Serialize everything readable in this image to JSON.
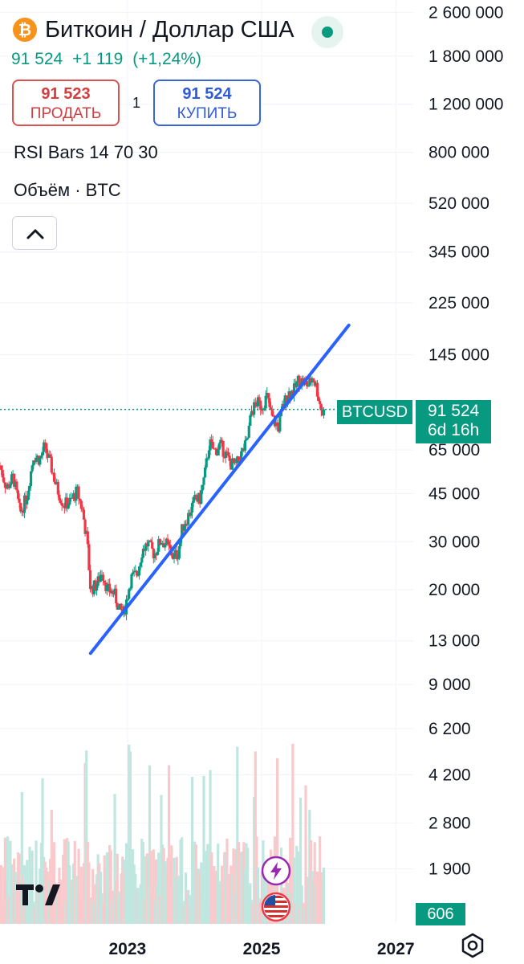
{
  "symbol": {
    "title": "Биткоин / Доллар США",
    "coin_icon": "bitcoin-icon",
    "last": "91 524",
    "change": "+1 119",
    "change_pct": "(+1,24%)",
    "status_color": "#089981"
  },
  "trade": {
    "sell_price": "91 523",
    "sell_label": "ПРОДАТЬ",
    "spread": "1",
    "buy_price": "91 524",
    "buy_label": "КУПИТЬ"
  },
  "indicators": {
    "rsi": "RSI Bars 14 70 30",
    "volume": "Объём · BTC"
  },
  "price_tag": {
    "ticker": "BTCUSD",
    "price": "91 524",
    "countdown": "6d 16h",
    "volume": "606"
  },
  "colors": {
    "up": "#089981",
    "down": "#f23645",
    "trendline": "#2962ff",
    "accent": "#089981"
  },
  "chart_data": {
    "type": "candlestick",
    "scale": "log",
    "interval": "1W",
    "y_ticks": [
      "2 600 000",
      "1 800 000",
      "1 200 000",
      "800 000",
      "520 000",
      "345 000",
      "225 000",
      "145 000",
      "65 000",
      "45 000",
      "30 000",
      "20 000",
      "13 000",
      "9 000",
      "6 200",
      "4 200",
      "2 800",
      "1 900"
    ],
    "y_tick_values": [
      2600000,
      1800000,
      1200000,
      800000,
      520000,
      345000,
      225000,
      145000,
      65000,
      45000,
      30000,
      20000,
      13000,
      9000,
      6200,
      4200,
      2800,
      1900
    ],
    "ylim": [
      1700,
      2700000
    ],
    "x_ticks": [
      "2023",
      "2025",
      "2027"
    ],
    "x_tick_values": [
      2023.0,
      2025.0,
      2027.0
    ],
    "xlim": [
      2021.1,
      2027.5
    ],
    "current_price_value": 91524,
    "price_series": [
      [
        2021.1,
        57000
      ],
      [
        2021.2,
        47000
      ],
      [
        2021.3,
        52000
      ],
      [
        2021.4,
        38000
      ],
      [
        2021.5,
        44000
      ],
      [
        2021.6,
        62000
      ],
      [
        2021.7,
        60000
      ],
      [
        2021.76,
        67000
      ],
      [
        2021.85,
        58000
      ],
      [
        2021.95,
        47000
      ],
      [
        2022.05,
        41000
      ],
      [
        2022.15,
        42000
      ],
      [
        2022.25,
        46000
      ],
      [
        2022.33,
        39000
      ],
      [
        2022.4,
        30000
      ],
      [
        2022.45,
        20000
      ],
      [
        2022.55,
        21000
      ],
      [
        2022.62,
        23500
      ],
      [
        2022.7,
        20000
      ],
      [
        2022.8,
        19500
      ],
      [
        2022.88,
        16800
      ],
      [
        2022.95,
        16500
      ],
      [
        2023.05,
        22000
      ],
      [
        2023.15,
        23000
      ],
      [
        2023.22,
        28000
      ],
      [
        2023.3,
        29500
      ],
      [
        2023.4,
        27000
      ],
      [
        2023.5,
        30500
      ],
      [
        2023.6,
        29000
      ],
      [
        2023.68,
        26500
      ],
      [
        2023.75,
        27000
      ],
      [
        2023.82,
        34000
      ],
      [
        2023.9,
        37000
      ],
      [
        2024.0,
        42500
      ],
      [
        2024.08,
        43000
      ],
      [
        2024.15,
        52000
      ],
      [
        2024.22,
        69000
      ],
      [
        2024.3,
        64000
      ],
      [
        2024.38,
        68000
      ],
      [
        2024.46,
        63000
      ],
      [
        2024.54,
        58000
      ],
      [
        2024.62,
        57000
      ],
      [
        2024.7,
        63000
      ],
      [
        2024.78,
        69000
      ],
      [
        2024.85,
        90000
      ],
      [
        2024.93,
        97000
      ],
      [
        2025.0,
        94000
      ],
      [
        2025.08,
        102000
      ],
      [
        2025.15,
        86000
      ],
      [
        2025.25,
        78000
      ],
      [
        2025.32,
        95000
      ],
      [
        2025.4,
        105000
      ],
      [
        2025.48,
        107000
      ],
      [
        2025.55,
        118000
      ],
      [
        2025.63,
        115000
      ],
      [
        2025.7,
        112000
      ],
      [
        2025.76,
        121000
      ],
      [
        2025.82,
        110000
      ],
      [
        2025.87,
        96000
      ],
      [
        2025.91,
        88000
      ],
      [
        2025.94,
        91524
      ]
    ],
    "trendline": [
      [
        2022.45,
        11700
      ],
      [
        2026.3,
        186000
      ]
    ]
  },
  "icons": {
    "logo": "tradingview-logo-icon",
    "settings": "settings-icon",
    "flash": "flash-icon",
    "flag": "us-flag-icon",
    "collapse": "chevron-up-icon"
  }
}
